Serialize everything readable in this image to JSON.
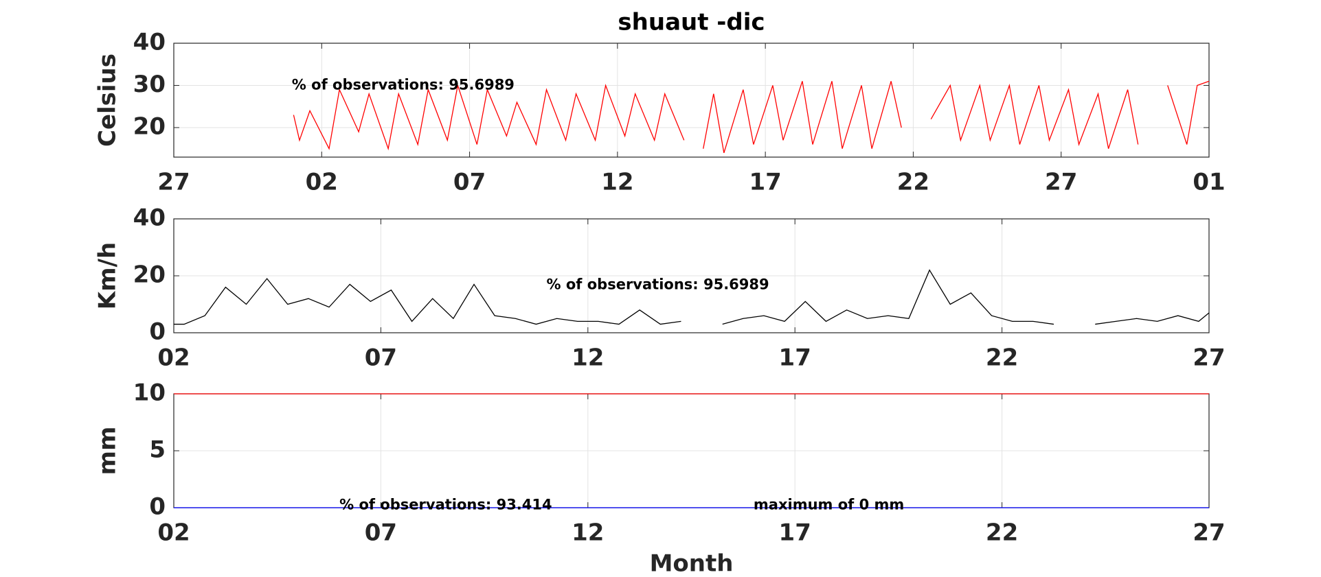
{
  "chart_data": [
    {
      "type": "line",
      "title": "shuaut -dic",
      "ylabel": "Celsius",
      "annotations": [
        "% of observations: 95.6989"
      ],
      "xlim": [
        0,
        35
      ],
      "xticks": [
        {
          "value": 0,
          "label": "27"
        },
        {
          "value": 5,
          "label": "02"
        },
        {
          "value": 10,
          "label": "07"
        },
        {
          "value": 15,
          "label": "12"
        },
        {
          "value": 20,
          "label": "17"
        },
        {
          "value": 25,
          "label": "22"
        },
        {
          "value": 30,
          "label": "27"
        },
        {
          "value": 35,
          "label": "01"
        }
      ],
      "ylim": [
        13,
        40
      ],
      "yticks": [
        20,
        30,
        40
      ],
      "grid": true,
      "series": [
        {
          "color": "#ff0000",
          "x": [
            4.05,
            4.25,
            4.6,
            5.25,
            5.6,
            6.25,
            6.6,
            7.25,
            7.6,
            8.25,
            8.6,
            9.25,
            9.6,
            10.25,
            10.6,
            11.25,
            11.6,
            12.25,
            12.6,
            13.25,
            13.6,
            14.25,
            14.6,
            15.25,
            15.6,
            16.25,
            16.6,
            17.25,
            17.6,
            17.9,
            18.25,
            18.6,
            19.25,
            19.6,
            20.25,
            20.6,
            21.25,
            21.6,
            22.25,
            22.6,
            23.25,
            23.6,
            24.25,
            24.6,
            25.0,
            25.6,
            26.25,
            26.6,
            27.25,
            27.6,
            28.25,
            28.6,
            29.25,
            29.6,
            30.25,
            30.6,
            31.25,
            31.6,
            32.25,
            32.6,
            33.0,
            33.6,
            34.25,
            34.6,
            35.0
          ],
          "values": [
            23,
            17,
            24,
            15,
            29,
            19,
            28,
            15,
            28,
            16,
            29,
            17,
            30,
            16,
            29,
            18,
            26,
            16,
            29,
            17,
            28,
            17,
            30,
            18,
            28,
            17,
            28,
            17,
            null,
            15,
            28,
            14,
            29,
            16,
            30,
            17,
            31,
            16,
            31,
            15,
            30,
            15,
            31,
            20,
            null,
            22,
            30,
            17,
            30,
            17,
            30,
            16,
            30,
            17,
            29,
            16,
            28,
            15,
            29,
            16,
            null,
            30,
            16,
            30,
            31
          ]
        }
      ]
    },
    {
      "type": "line",
      "ylabel": "Km/h",
      "annotations": [
        "% of observations: 95.6989"
      ],
      "xlim": [
        0,
        25
      ],
      "xticks": [
        {
          "value": 0,
          "label": "02"
        },
        {
          "value": 5,
          "label": "07"
        },
        {
          "value": 10,
          "label": "12"
        },
        {
          "value": 15,
          "label": "17"
        },
        {
          "value": 20,
          "label": "22"
        },
        {
          "value": 25,
          "label": "27"
        }
      ],
      "ylim": [
        0,
        40
      ],
      "yticks": [
        0,
        20,
        40
      ],
      "grid": true,
      "series": [
        {
          "color": "#000000",
          "x": [
            0.0,
            0.25,
            0.75,
            1.25,
            1.75,
            2.25,
            2.75,
            3.25,
            3.75,
            4.25,
            4.75,
            5.25,
            5.75,
            6.25,
            6.75,
            7.25,
            7.75,
            8.25,
            8.75,
            9.25,
            9.75,
            10.25,
            10.75,
            11.25,
            11.75,
            12.25,
            12.75,
            13.25,
            13.75,
            14.25,
            14.75,
            15.25,
            15.75,
            16.25,
            16.75,
            17.25,
            17.75,
            18.25,
            18.75,
            19.25,
            19.75,
            20.25,
            20.75,
            21.25,
            21.75,
            22.25,
            22.75,
            23.25,
            23.75,
            24.25,
            24.75,
            25.0
          ],
          "values": [
            3,
            3,
            6,
            16,
            10,
            19,
            10,
            12,
            9,
            17,
            11,
            15,
            4,
            12,
            5,
            17,
            6,
            5,
            3,
            5,
            4,
            4,
            3,
            8,
            3,
            4,
            null,
            3,
            5,
            6,
            4,
            11,
            4,
            8,
            5,
            6,
            5,
            22,
            10,
            14,
            6,
            4,
            4,
            3,
            null,
            3,
            4,
            5,
            4,
            6,
            4,
            7
          ]
        }
      ]
    },
    {
      "type": "line",
      "ylabel": "mm",
      "xlabel": "Month",
      "annotations": [
        "% of observations: 93.414",
        "maximum of 0 mm"
      ],
      "xlim": [
        0,
        25
      ],
      "xticks": [
        {
          "value": 0,
          "label": "02"
        },
        {
          "value": 5,
          "label": "07"
        },
        {
          "value": 10,
          "label": "12"
        },
        {
          "value": 15,
          "label": "17"
        },
        {
          "value": 20,
          "label": "22"
        },
        {
          "value": 25,
          "label": "27"
        }
      ],
      "ylim": [
        0,
        10
      ],
      "yticks": [
        0,
        5,
        10
      ],
      "grid": true,
      "series": [
        {
          "color": "#ff0000",
          "x": [
            0,
            25
          ],
          "values": [
            10,
            10
          ]
        },
        {
          "color": "#0000ff",
          "x": [
            0,
            25
          ],
          "values": [
            0,
            0
          ]
        }
      ]
    }
  ]
}
